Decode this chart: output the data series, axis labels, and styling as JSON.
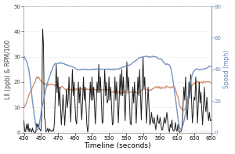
{
  "xlim": [
    430,
    650
  ],
  "ylim_left": [
    0,
    50
  ],
  "ylim_right": [
    0,
    80
  ],
  "xticks": [
    430,
    450,
    470,
    490,
    510,
    530,
    550,
    570,
    590,
    610,
    630,
    650
  ],
  "yticks_left": [
    0,
    10,
    20,
    30,
    40,
    50
  ],
  "yticks_right": [
    0,
    20,
    40,
    60,
    80
  ],
  "xlabel": "Timeline (seconds)",
  "ylabel_left": "LII (ppb) & RPM/100",
  "ylabel_right": "Speed (mph)",
  "color_speed": "#6688BB",
  "color_rpm": "#CC8866",
  "color_lii": "#111111",
  "color_dotted": "#BBBBBB",
  "bg_color": "#FFFFFF",
  "grid_color": "#DDDDDD",
  "figsize": [
    3.0,
    1.97
  ],
  "dpi": 100
}
